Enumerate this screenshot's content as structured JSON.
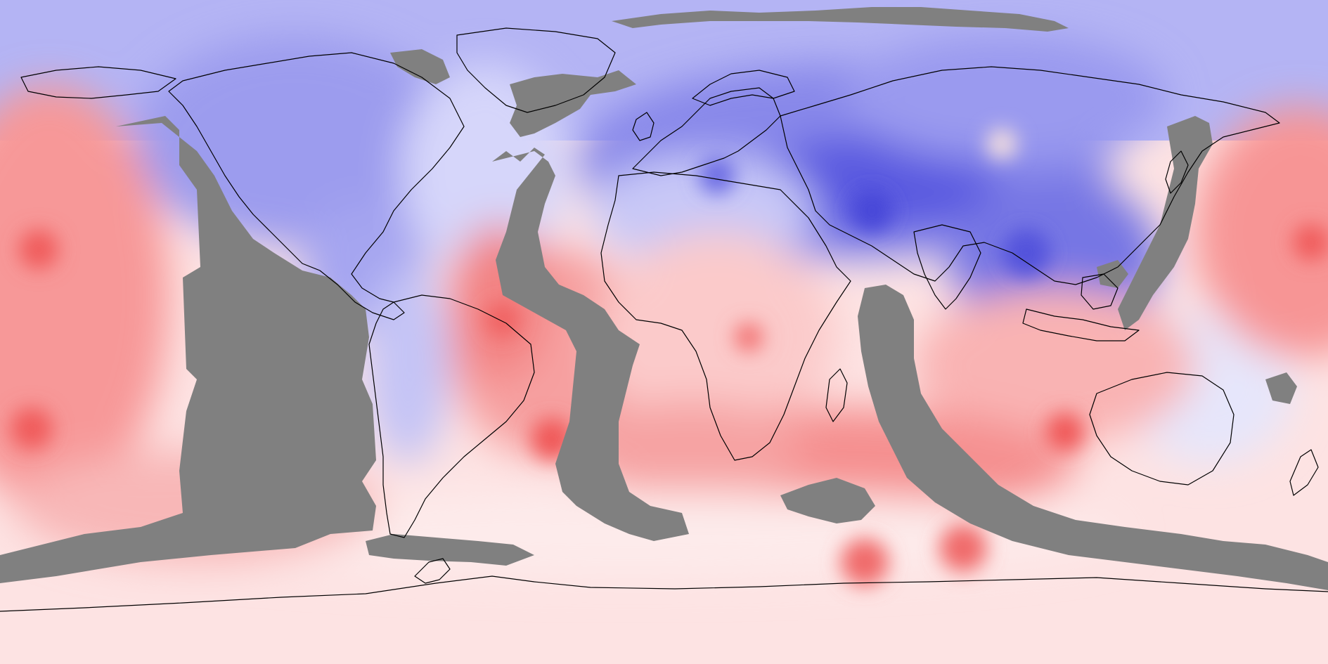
{
  "map": {
    "projection": "equirectangular",
    "colormap": {
      "warm": "#f26b6b",
      "warm_light": "#fbd3d3",
      "neutral": "#fff4f4",
      "cool_light": "#dcdcfa",
      "cool": "#6f6fe6",
      "missing_data": "#808080",
      "coastline": "#000000"
    },
    "layers": [
      "anomaly-field",
      "missing-data-mask",
      "coastlines"
    ]
  }
}
